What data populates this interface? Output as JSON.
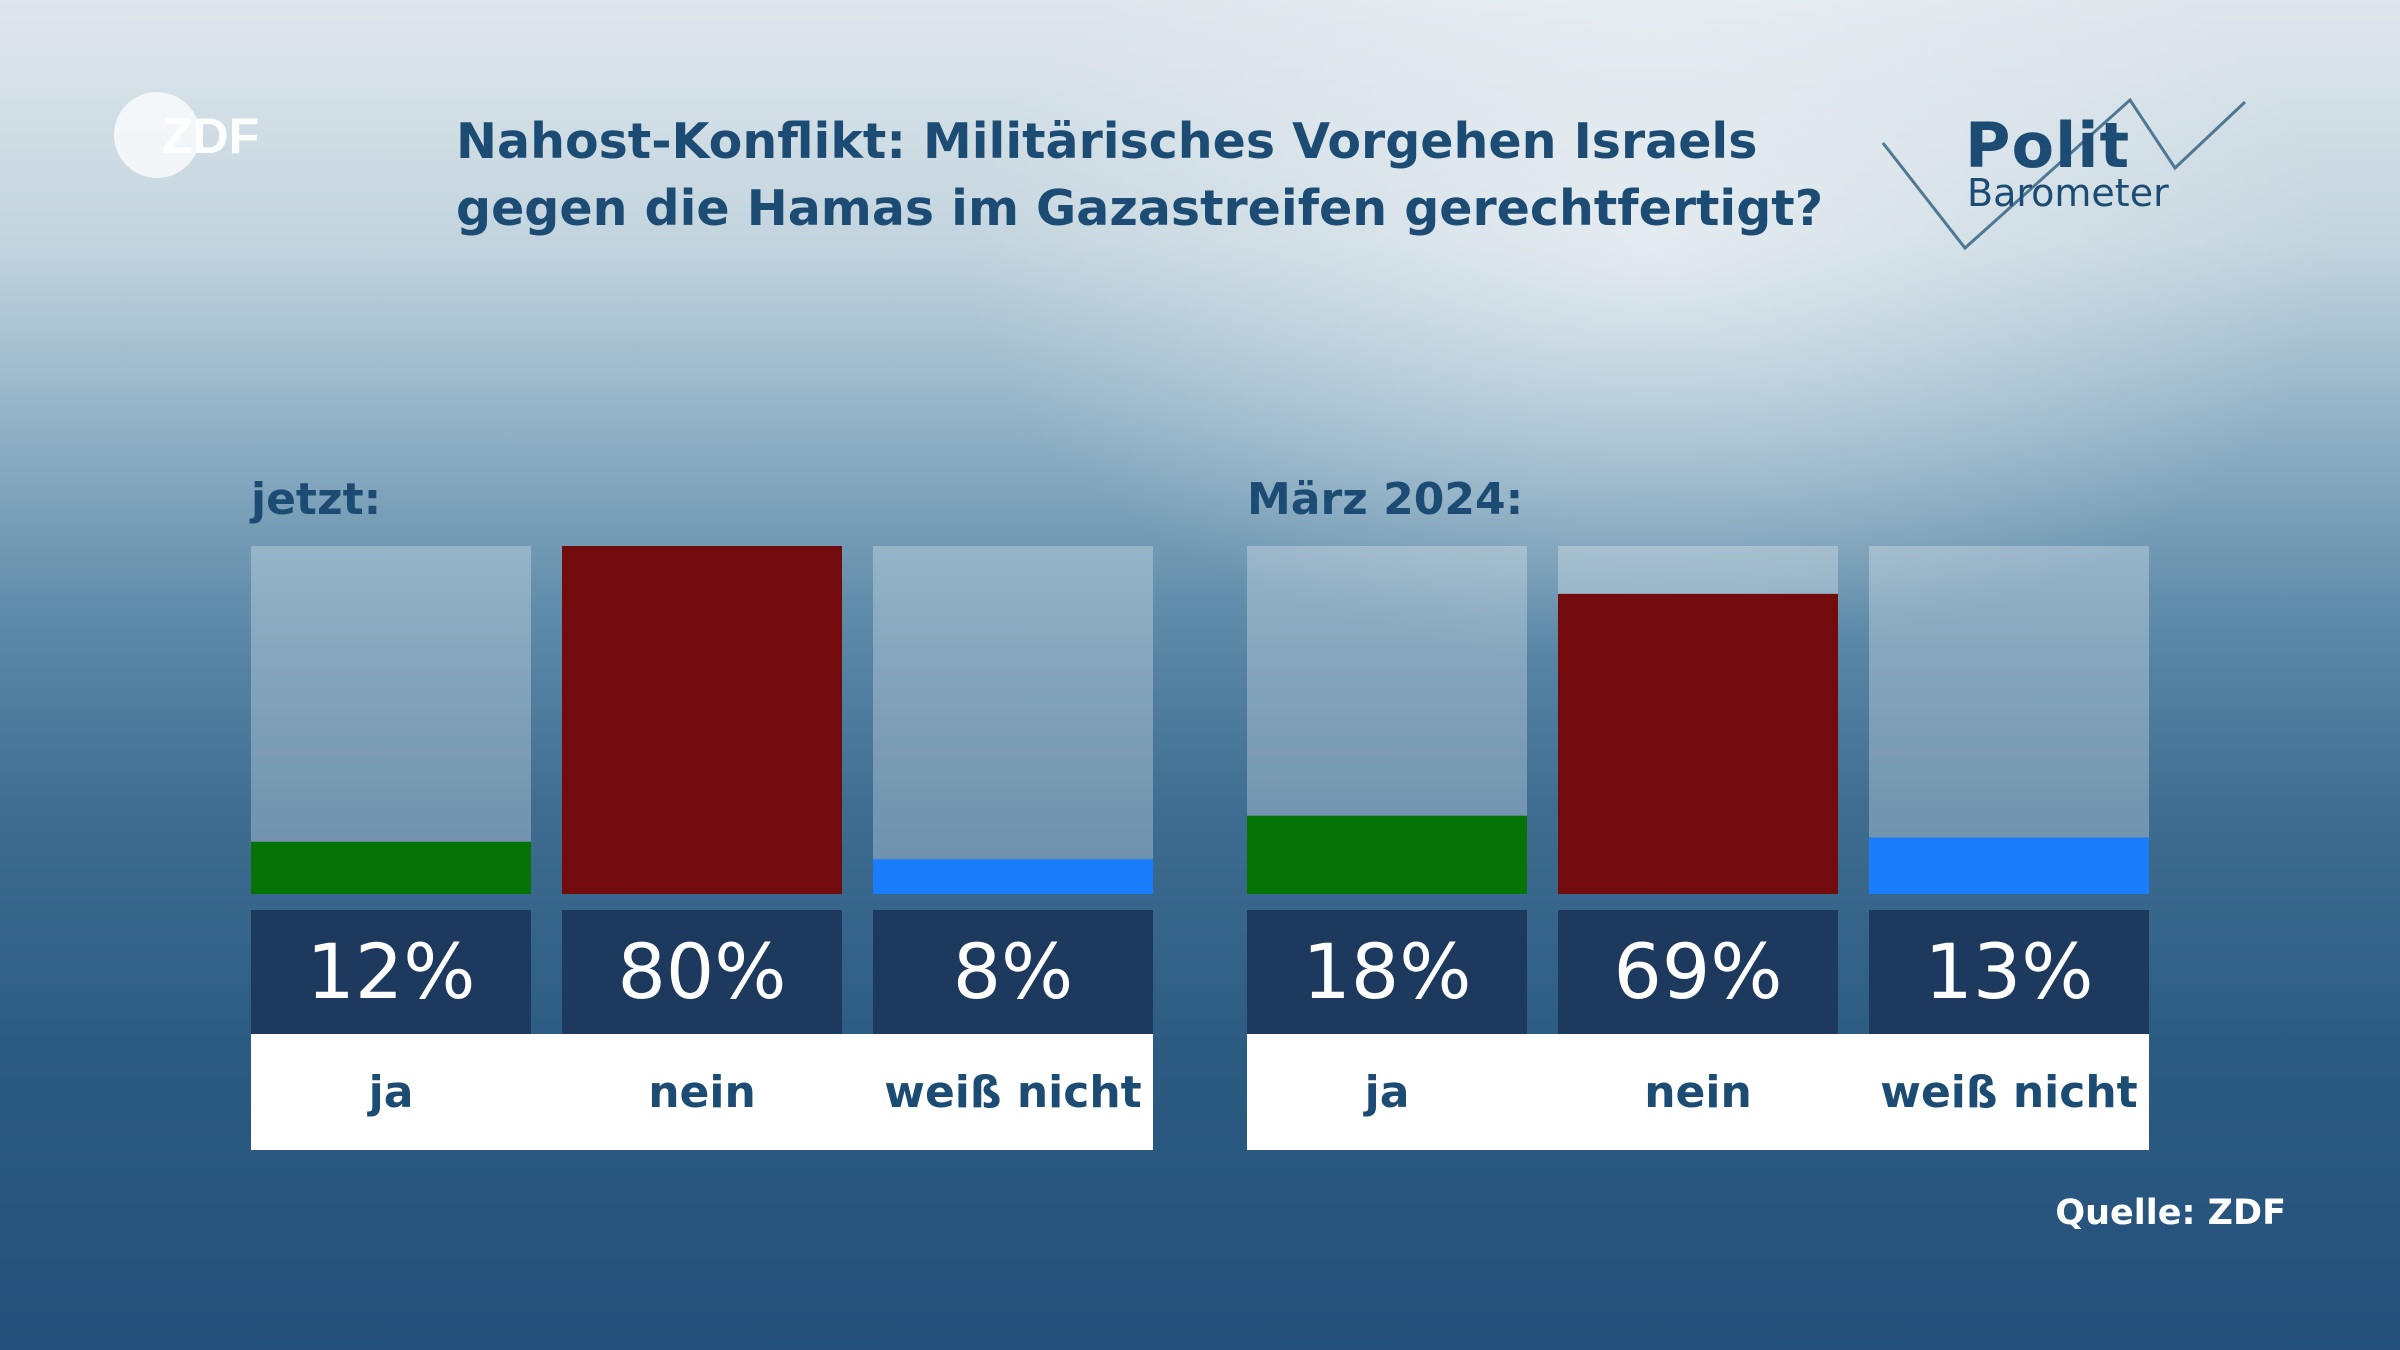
{
  "brand": {
    "logo_text": "ZDF",
    "politbarometer_line1": "Polit",
    "politbarometer_line2": "Barometer"
  },
  "title": {
    "line1": "Nahost-Konflikt: Militärisches Vorgehen Israels",
    "line2": "gegen die Hamas im Gazastreifen gerechtfertigt?"
  },
  "source": "Quelle: ZDF",
  "colors": {
    "ja": "#067306",
    "nein": "#710b0d",
    "weiss_nicht": "#1a7dfc",
    "value_box": "#1d3a5e",
    "text_dark": "#1c4c73"
  },
  "chart_data": {
    "type": "bar",
    "unit": "%",
    "ylim": [
      0,
      80
    ],
    "groups": [
      {
        "label": "jetzt:",
        "categories": [
          "ja",
          "nein",
          "weiß nicht"
        ],
        "values": [
          12,
          80,
          8
        ],
        "value_labels": [
          "12%",
          "80%",
          "8%"
        ]
      },
      {
        "label": "März 2024:",
        "categories": [
          "ja",
          "nein",
          "weiß nicht"
        ],
        "values": [
          18,
          69,
          13
        ],
        "value_labels": [
          "18%",
          "69%",
          "13%"
        ]
      }
    ]
  }
}
